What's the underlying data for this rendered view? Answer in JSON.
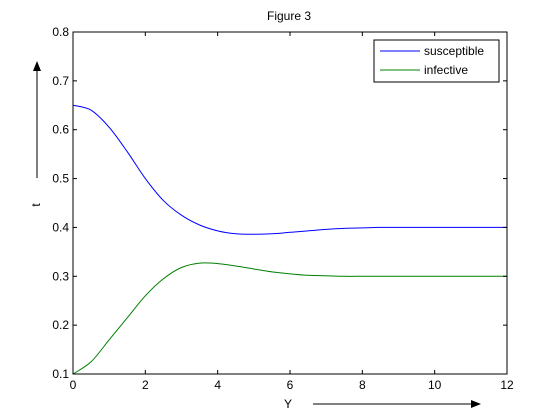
{
  "chart_data": {
    "type": "line",
    "title": "Figure 3",
    "xlabel": "Y",
    "ylabel": "t",
    "xlim": [
      0,
      12
    ],
    "ylim": [
      0.1,
      0.8
    ],
    "xticks": [
      0,
      2,
      4,
      6,
      8,
      10,
      12
    ],
    "yticks": [
      0.1,
      0.2,
      0.3,
      0.4,
      0.5,
      0.6,
      0.7,
      0.8
    ],
    "xtick_labels": [
      "0",
      "2",
      "4",
      "6",
      "8",
      "10",
      "12"
    ],
    "ytick_labels": [
      "0.1",
      "0.2",
      "0.3",
      "0.4",
      "0.5",
      "0.6",
      "0.7",
      "0.8"
    ],
    "grid": false,
    "legend_position": "top-right",
    "x": [
      0,
      0.5,
      1,
      1.5,
      2,
      2.5,
      3,
      3.5,
      4,
      4.5,
      5,
      5.5,
      6,
      6.5,
      7,
      7.5,
      8,
      8.5,
      9,
      9.5,
      10,
      10.5,
      11,
      11.5,
      12
    ],
    "series": [
      {
        "name": "susceptible",
        "color": "#0000ff",
        "values": [
          0.65,
          0.64,
          0.605,
          0.555,
          0.5,
          0.455,
          0.425,
          0.405,
          0.393,
          0.387,
          0.386,
          0.387,
          0.39,
          0.393,
          0.396,
          0.398,
          0.399,
          0.4,
          0.4,
          0.4,
          0.4,
          0.4,
          0.4,
          0.4,
          0.4
        ]
      },
      {
        "name": "infective",
        "color": "#008000",
        "values": [
          0.1,
          0.125,
          0.17,
          0.215,
          0.26,
          0.295,
          0.318,
          0.327,
          0.326,
          0.321,
          0.315,
          0.309,
          0.305,
          0.302,
          0.301,
          0.3,
          0.3,
          0.3,
          0.3,
          0.3,
          0.3,
          0.3,
          0.3,
          0.3,
          0.3
        ]
      }
    ]
  }
}
